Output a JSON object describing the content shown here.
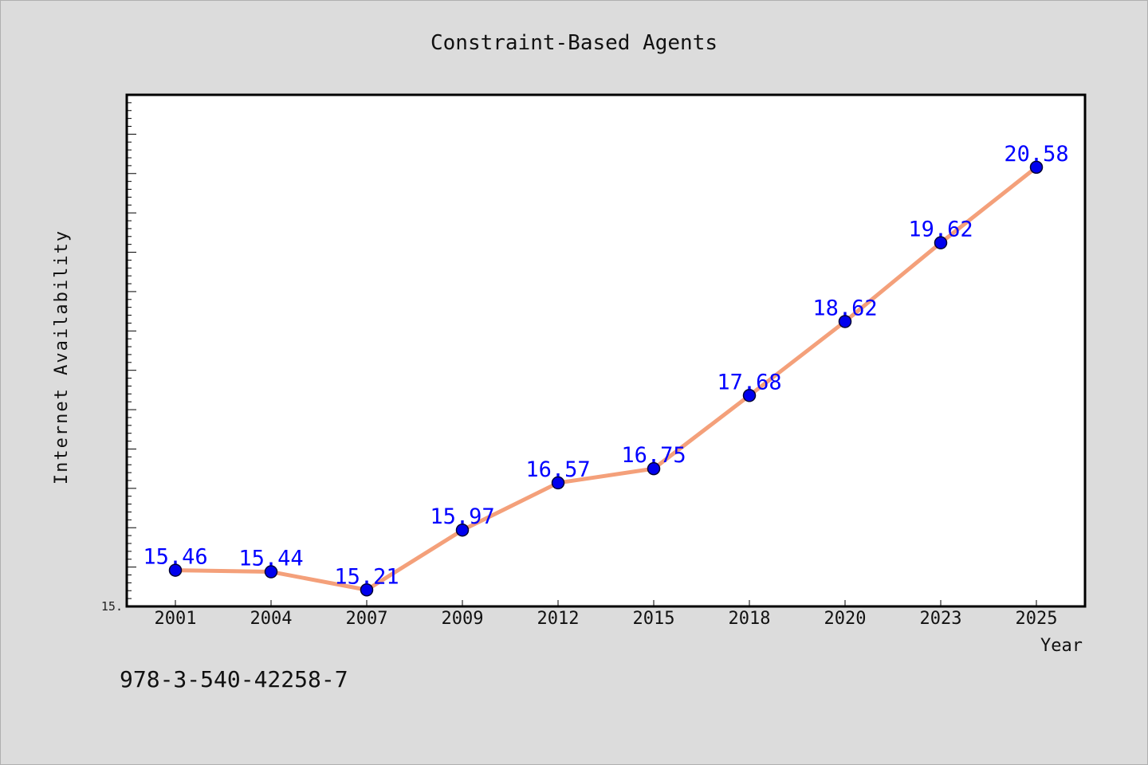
{
  "chart_data": {
    "type": "line",
    "title": "Constraint-Based Agents",
    "xlabel": "Year",
    "ylabel": "Internet Availability",
    "categories": [
      "2001",
      "2004",
      "2007",
      "2009",
      "2012",
      "2015",
      "2018",
      "2020",
      "2023",
      "2025"
    ],
    "series": [
      {
        "values": [
          15.46,
          15.44,
          15.21,
          15.97,
          16.57,
          16.75,
          17.68,
          18.62,
          19.62,
          20.58
        ],
        "labels": [
          "15.46",
          "15.44",
          "15.21",
          "15.97",
          "16.57",
          "16.75",
          "17.68",
          "18.62",
          "19.62",
          "20.58"
        ]
      }
    ],
    "ylim": [
      15.0,
      21.5
    ],
    "y_tick_label": "15.",
    "grid": false,
    "legend": "none",
    "colors": {
      "line": "#f4a07a",
      "marker": "#0000ee",
      "marker_edge": "#000033",
      "label": "#0000ff",
      "background": "#dcdcdc",
      "plot_bg": "#ffffff"
    }
  },
  "footer": {
    "code": "978-3-540-42258-7"
  }
}
